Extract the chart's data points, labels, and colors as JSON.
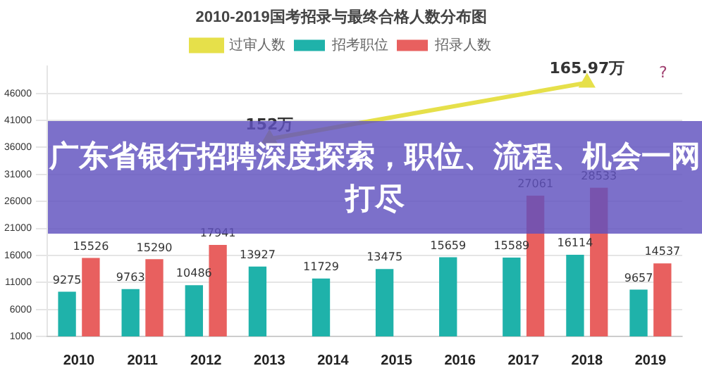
{
  "chart_data": {
    "type": "bar",
    "title": "2010-2019国考招录与最终合格人数分布图",
    "categories": [
      "2010",
      "2011",
      "2012",
      "2013",
      "2014",
      "2015",
      "2016",
      "2017",
      "2018",
      "2019"
    ],
    "series": [
      {
        "name": "招考职位",
        "color": "#1fb2aa",
        "values": [
          9275,
          9763,
          10486,
          13927,
          11729,
          13475,
          15659,
          15589,
          16114,
          9657
        ]
      },
      {
        "name": "招录人数",
        "color": "#e8605f",
        "values": [
          15526,
          15290,
          17941,
          null,
          null,
          null,
          null,
          27061,
          28533,
          14537
        ]
      },
      {
        "name": "过审人数",
        "type": "line",
        "axis": "y2",
        "color": "#e6e04a",
        "values": [
          null,
          null,
          null,
          152,
          null,
          null,
          null,
          null,
          165.97,
          null
        ],
        "value_labels": [
          null,
          null,
          null,
          "152万",
          null,
          null,
          null,
          null,
          "165.97万",
          null
        ]
      }
    ],
    "ylim": [
      1000,
      51000
    ],
    "yticks": [
      1000,
      6000,
      11000,
      16000,
      21000,
      26000,
      31000,
      36000,
      41000,
      46000
    ],
    "y2lim": [
      103,
      170
    ],
    "grid": "y",
    "legend": "top",
    "marker": "triangle",
    "data_labels": true,
    "annotations": [
      "广东省银行招聘深度探索，职位、流程、机会一网打尽",
      "?"
    ]
  }
}
